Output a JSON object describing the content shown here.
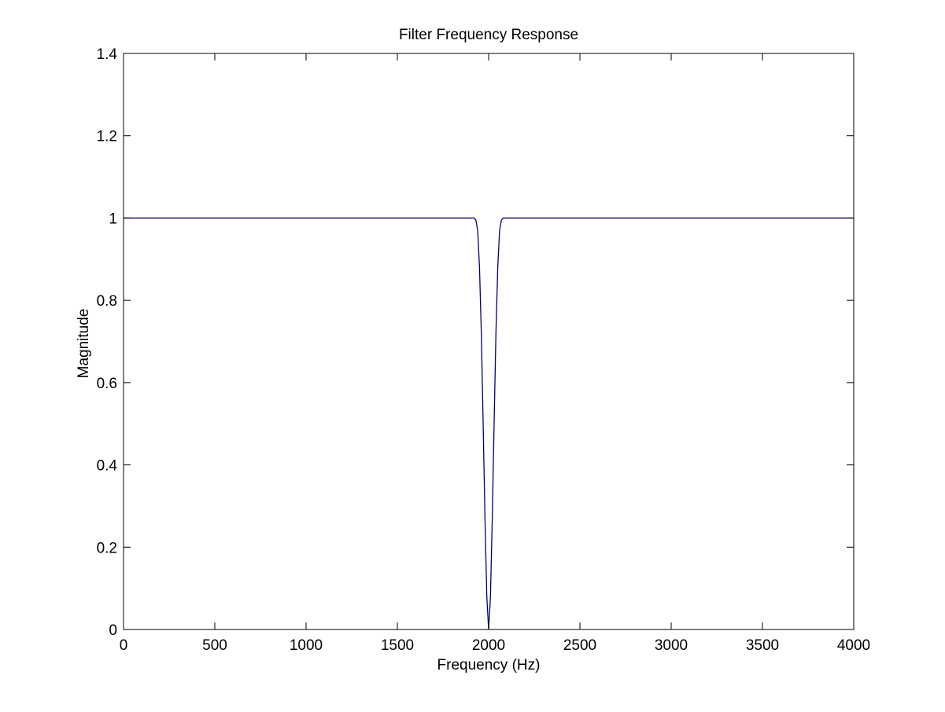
{
  "chart_data": {
    "type": "line",
    "title": "Filter Frequency Response",
    "xlabel": "Frequency (Hz)",
    "ylabel": "Magnitude",
    "xlim": [
      0,
      4000
    ],
    "ylim": [
      0,
      1.4
    ],
    "x_ticks": [
      0,
      500,
      1000,
      1500,
      2000,
      2500,
      3000,
      3500,
      4000
    ],
    "x_tick_labels": [
      "0",
      "500",
      "1000",
      "1500",
      "2000",
      "2500",
      "3000",
      "3500",
      "4000"
    ],
    "y_ticks": [
      0,
      0.2,
      0.4,
      0.6,
      0.8,
      1.0,
      1.2,
      1.4
    ],
    "y_tick_labels": [
      "0",
      "0.2",
      "0.4",
      "0.6",
      "0.8",
      "1",
      "1.2",
      "1.4"
    ],
    "grid": false,
    "legend": "none",
    "series": [
      {
        "color": "#00007f",
        "x": [
          0,
          250,
          500,
          750,
          1000,
          1250,
          1500,
          1750,
          1900,
          1920,
          1930,
          1940,
          1950,
          1960,
          1970,
          1980,
          1990,
          2000,
          2010,
          2020,
          2030,
          2040,
          2050,
          2060,
          2070,
          2080,
          2100,
          2250,
          2500,
          2750,
          3000,
          3250,
          3500,
          3750,
          4000
        ],
        "y": [
          1.0,
          1.0,
          1.0,
          1.0,
          1.0,
          1.0,
          1.0,
          1.0,
          1.0,
          1.0,
          0.995,
          0.97,
          0.88,
          0.72,
          0.5,
          0.27,
          0.08,
          0.0,
          0.08,
          0.27,
          0.5,
          0.72,
          0.88,
          0.97,
          0.995,
          1.0,
          1.0,
          1.0,
          1.0,
          1.0,
          1.0,
          1.0,
          1.0,
          1.0,
          1.0
        ]
      }
    ]
  }
}
